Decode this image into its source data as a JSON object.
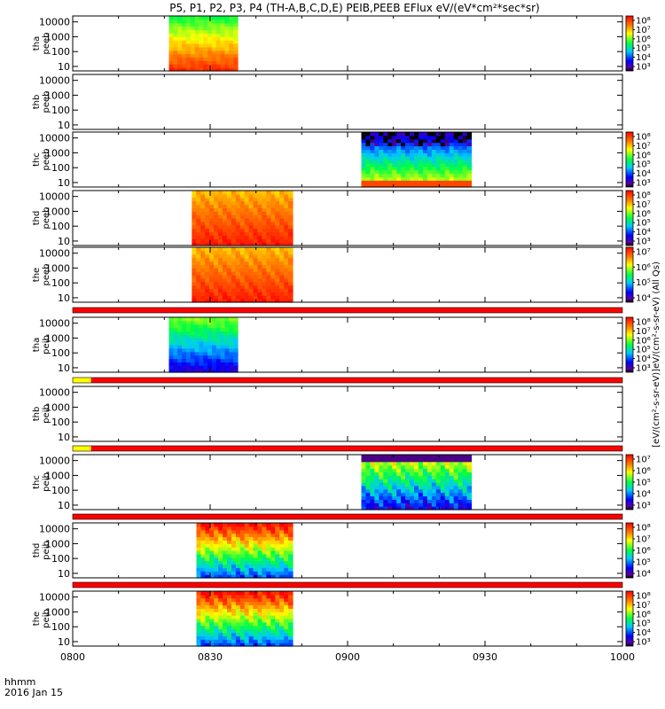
{
  "chart_data": {
    "type": "heatmap",
    "title": "P5, P1, P2, P3, P4 (TH-A,B,C,D,E) PEIB,PEEB EFlux eV/(eV*cm²*sec*sr)",
    "colorbar_label": "[eV/(cm²-s-sr-eV)]eV/(cm²-s-sr-eV) (All Qs)",
    "x_axis": {
      "ticks": [
        "0800",
        "0830",
        "0900",
        "0930",
        "1000"
      ],
      "label_lines": [
        "hhmm",
        "2016 Jan 15"
      ],
      "range_minutes": [
        0,
        120
      ]
    },
    "y_axis": {
      "scale": "log",
      "ticks": [
        "10000",
        "1000",
        "100",
        "10"
      ],
      "range": [
        5,
        25000
      ]
    },
    "panels": [
      {
        "name": "tha peeb",
        "label_lines": [
          "tha",
          "peeb"
        ],
        "data_start_min": 21,
        "data_end_min": 36,
        "profile": "electron_high",
        "colorbar": [
          "10⁸",
          "10⁷",
          "10⁶",
          "10⁵",
          "10⁴",
          "10³"
        ]
      },
      {
        "name": "thb peeb",
        "label_lines": [
          "thb",
          "peeb"
        ],
        "data_start_min": null,
        "data_end_min": null,
        "profile": "empty",
        "colorbar": []
      },
      {
        "name": "thc peeb",
        "label_lines": [
          "thc",
          "peeb"
        ],
        "data_start_min": 63,
        "data_end_min": 87,
        "profile": "electron_low",
        "colorbar": [
          "10⁸",
          "10⁷",
          "10⁶",
          "10⁵",
          "10⁴",
          "10³"
        ]
      },
      {
        "name": "thd peeb",
        "label_lines": [
          "thd",
          "peeb"
        ],
        "data_start_min": 26,
        "data_end_min": 48,
        "profile": "electron_red",
        "colorbar": [
          "10⁸",
          "10⁷",
          "10⁶",
          "10⁵",
          "10⁴",
          "10³"
        ]
      },
      {
        "name": "the peeb",
        "label_lines": [
          "the",
          "peeb"
        ],
        "data_start_min": 26,
        "data_end_min": 48,
        "profile": "electron_red",
        "colorbar": [
          "10⁷",
          "10⁶",
          "10⁵",
          "10⁴"
        ]
      },
      {
        "name": "tha peib",
        "label_lines": [
          "tha",
          "peib"
        ],
        "data_start_min": 21,
        "data_end_min": 36,
        "profile": "ion_green",
        "colorbar": [
          "10⁸",
          "10⁷",
          "10⁶",
          "10⁵",
          "10⁴",
          "10³"
        ]
      },
      {
        "name": "thb peib",
        "label_lines": [
          "thb",
          "peib"
        ],
        "data_start_min": null,
        "data_end_min": null,
        "profile": "empty",
        "colorbar": []
      },
      {
        "name": "thc peib",
        "label_lines": [
          "thc",
          "peib"
        ],
        "data_start_min": 63,
        "data_end_min": 87,
        "profile": "ion_mix",
        "colorbar": [
          "10⁷",
          "10⁶",
          "10⁵",
          "10⁴",
          "10³"
        ]
      },
      {
        "name": "thd peib",
        "label_lines": [
          "thd",
          "peib"
        ],
        "data_start_min": 27,
        "data_end_min": 48,
        "profile": "ion_red",
        "colorbar": [
          "10⁸",
          "10⁷",
          "10⁶",
          "10⁵",
          "10⁴"
        ]
      },
      {
        "name": "the peib",
        "label_lines": [
          "the",
          "peib"
        ],
        "data_start_min": 27,
        "data_end_min": 48,
        "profile": "ion_red",
        "colorbar": [
          "10⁸",
          "10⁷",
          "10⁶",
          "10⁵",
          "10⁴",
          "10³"
        ]
      }
    ],
    "status_bars": [
      {
        "after_panel": 4,
        "segments": [
          {
            "start_min": 0,
            "end_min": 120,
            "color": "#ff0000"
          }
        ]
      },
      {
        "after_panel": 5,
        "segments": [
          {
            "start_min": 0,
            "end_min": 4,
            "color": "#ffff00"
          },
          {
            "start_min": 4,
            "end_min": 120,
            "color": "#ff0000"
          }
        ]
      },
      {
        "after_panel": 6,
        "segments": [
          {
            "start_min": 0,
            "end_min": 4,
            "color": "#ffff00"
          },
          {
            "start_min": 4,
            "end_min": 120,
            "color": "#ff0000"
          }
        ]
      },
      {
        "after_panel": 7,
        "segments": [
          {
            "start_min": 0,
            "end_min": 120,
            "color": "#ff0000"
          }
        ]
      },
      {
        "after_panel": 8,
        "segments": [
          {
            "start_min": 0,
            "end_min": 120,
            "color": "#ff0000"
          }
        ]
      }
    ]
  }
}
